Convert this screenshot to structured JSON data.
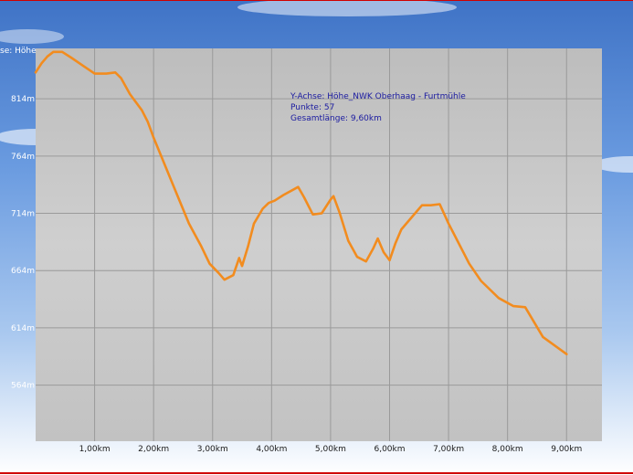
{
  "chart_data": {
    "type": "line",
    "ylabel": "Y-Achse: Höhe",
    "ylabel_visible": "se: Höhe",
    "annotations": [
      "Y-Achse: Höhe_NWK Oberhaag - Furtmühle",
      "Punkte: 57",
      "Gesamtlänge: 9,60km"
    ],
    "x_ticks": [
      "1,00km",
      "2,00km",
      "3,00km",
      "4,00km",
      "5,00km",
      "6,00km",
      "7,00km",
      "8,00km",
      "9,00km"
    ],
    "x_tick_values": [
      1,
      2,
      3,
      4,
      5,
      6,
      7,
      8,
      9
    ],
    "y_ticks": [
      "564m",
      "614m",
      "664m",
      "714m",
      "764m",
      "814m"
    ],
    "y_tick_values": [
      564,
      614,
      664,
      714,
      764,
      814
    ],
    "xlim": [
      0,
      9.6
    ],
    "ylim": [
      515,
      858
    ],
    "grid": true,
    "line_color": "#f28c1f",
    "plot_background": "#c6c6c6",
    "series": [
      {
        "x": [
          0,
          0.1,
          0.2,
          0.3,
          0.45,
          0.6,
          0.8,
          1.0,
          1.2,
          1.35,
          1.45,
          1.6,
          1.8,
          1.9,
          2.0,
          2.2,
          2.4,
          2.6,
          2.8,
          2.95,
          3.1,
          3.2,
          3.35,
          3.45,
          3.5,
          3.6,
          3.7,
          3.85,
          3.95,
          4.05,
          4.2,
          4.45,
          4.55,
          4.7,
          4.85,
          5.0,
          5.05,
          5.15,
          5.3,
          5.45,
          5.6,
          5.72,
          5.8,
          5.9,
          6.0,
          6.1,
          6.2,
          6.4,
          6.55,
          6.7,
          6.85,
          7.0,
          7.15,
          7.35,
          7.55,
          7.85,
          8.1,
          8.3,
          8.6,
          9.0
        ],
        "y": [
          837,
          845,
          851,
          855,
          855,
          850,
          843,
          836,
          836,
          837,
          832,
          818,
          804,
          794,
          780,
          755,
          730,
          705,
          686,
          670,
          662,
          656,
          660,
          675,
          668,
          685,
          705,
          718,
          723,
          725,
          730,
          737,
          728,
          713,
          714,
          726,
          729,
          715,
          690,
          676,
          672,
          683,
          692,
          680,
          673,
          688,
          700,
          712,
          721,
          721,
          722,
          705,
          690,
          670,
          655,
          640,
          633,
          632,
          606,
          591
        ]
      }
    ]
  }
}
